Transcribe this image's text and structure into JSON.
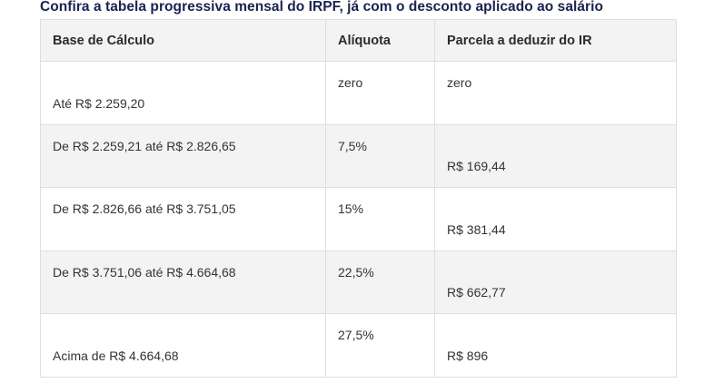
{
  "caption": "Confira a tabela progressiva mensal do IRPF, já com o desconto aplicado ao salário",
  "table": {
    "headers": [
      "Base de Cálculo",
      "Alíquota",
      "Parcela a deduzir do IR"
    ],
    "rows": [
      {
        "base": "Até R$ 2.259,20",
        "aliquota": "zero",
        "parcela": "zero"
      },
      {
        "base": "De R$ 2.259,21 até R$ 2.826,65",
        "aliquota": "7,5%",
        "parcela": "R$ 169,44"
      },
      {
        "base": "De R$ 2.826,66 até R$ 3.751,05",
        "aliquota": "15%",
        "parcela": "R$ 381,44"
      },
      {
        "base": "De R$ 3.751,06 até R$ 4.664,68",
        "aliquota": "22,5%",
        "parcela": "R$ 662,77"
      },
      {
        "base": "Acima de R$ 4.664,68",
        "aliquota": "27,5%",
        "parcela": "R$ 896"
      }
    ]
  },
  "colors": {
    "caption": "#1a2350",
    "header_bg": "#f3f3f3",
    "stripe_bg": "#f3f3f3",
    "border": "#dedede"
  }
}
